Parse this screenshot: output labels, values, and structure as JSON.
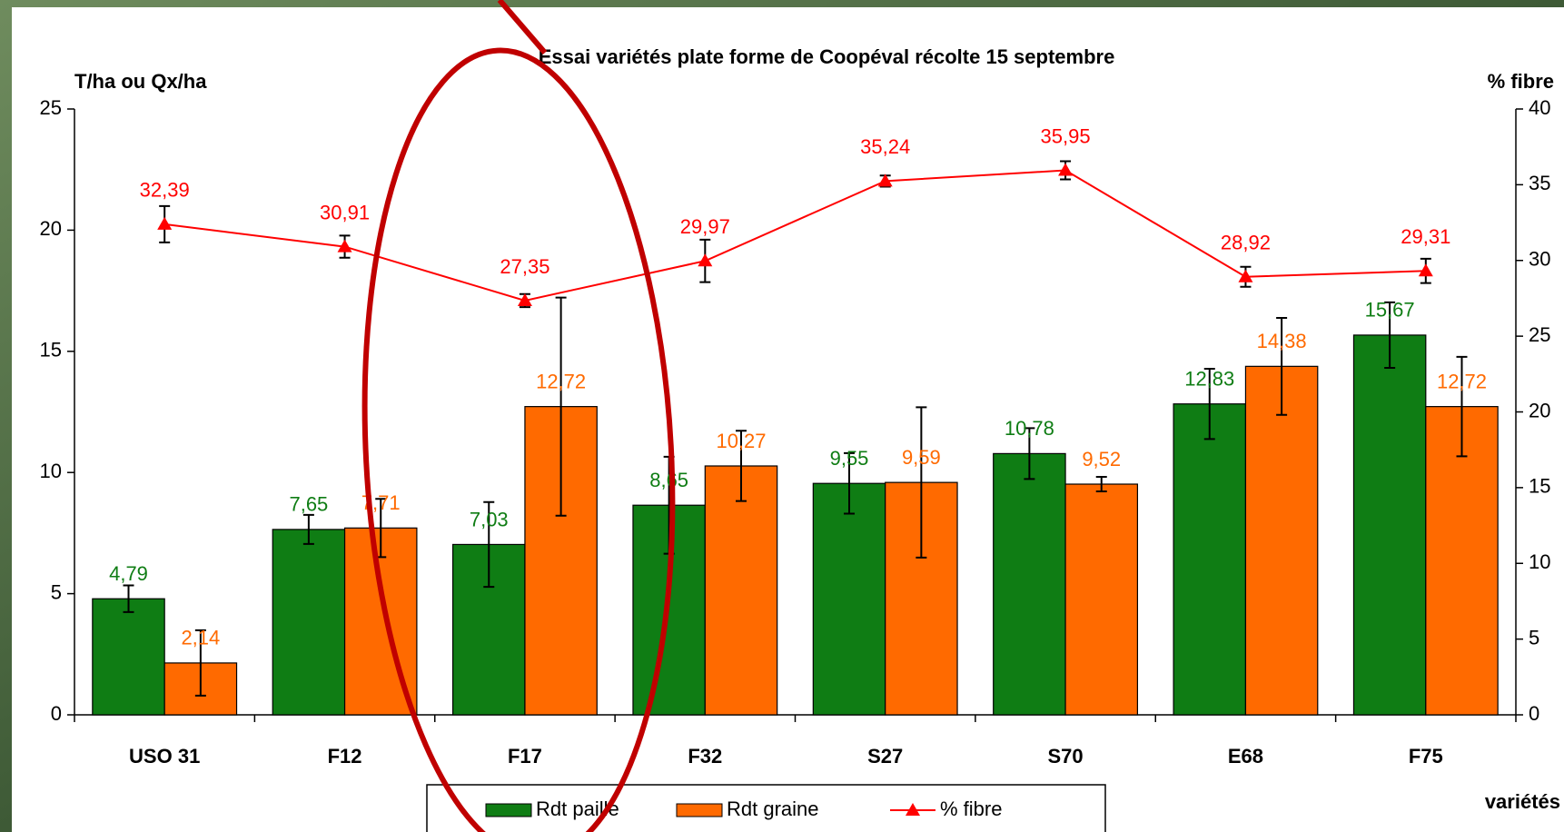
{
  "chart_data": {
    "type": "bar",
    "title": "Essai variétés plate forme de Coopéval récolte 15 septembre",
    "y_label": "T/ha ou Qx/ha",
    "y2_label": "% fibre",
    "x_label": "variétés",
    "categories": [
      "USO 31",
      "F12",
      "F17",
      "F32",
      "S27",
      "S70",
      "E68",
      "F75"
    ],
    "series": [
      {
        "name": "Rdt paille",
        "type": "bar",
        "color": "#0f7d14",
        "values": [
          4.79,
          7.65,
          7.03,
          8.65,
          9.55,
          10.78,
          12.83,
          15.67
        ],
        "value_labels": [
          "4,79",
          "7,65",
          "7,03",
          "8,65",
          "9,55",
          "10,78",
          "12,83",
          "15,67"
        ],
        "errors": [
          0.55,
          0.6,
          1.75,
          2.0,
          1.25,
          1.05,
          1.45,
          1.35
        ]
      },
      {
        "name": "Rdt graine",
        "type": "bar",
        "color": "#ff6a00",
        "values": [
          2.14,
          7.71,
          12.72,
          10.27,
          9.59,
          9.52,
          14.38,
          12.72
        ],
        "value_labels": [
          "2,14",
          "7,71",
          "12,72",
          "10,27",
          "9,59",
          "9,52",
          "14,38",
          "12,72"
        ],
        "errors": [
          1.35,
          1.2,
          4.5,
          1.45,
          3.1,
          0.3,
          2.0,
          2.05
        ]
      },
      {
        "name": "% fibre",
        "type": "line",
        "axis": "y2",
        "color": "#ff0000",
        "values": [
          32.39,
          30.91,
          27.35,
          29.97,
          35.24,
          35.95,
          28.92,
          29.31
        ],
        "value_labels": [
          "32,39",
          "30,91",
          "27,35",
          "29,97",
          "35,24",
          "35,95",
          "28,92",
          "29,31"
        ],
        "errors": [
          1.2,
          0.73,
          0.43,
          1.4,
          0.37,
          0.6,
          0.66,
          0.8
        ]
      }
    ],
    "ylim": [
      0,
      25
    ],
    "yticks": [
      0,
      5,
      10,
      15,
      20,
      25
    ],
    "y2lim": [
      0,
      40
    ],
    "y2ticks": [
      0,
      5,
      10,
      15,
      20,
      25,
      30,
      35,
      40
    ],
    "grid": false,
    "legend": "bottom"
  }
}
